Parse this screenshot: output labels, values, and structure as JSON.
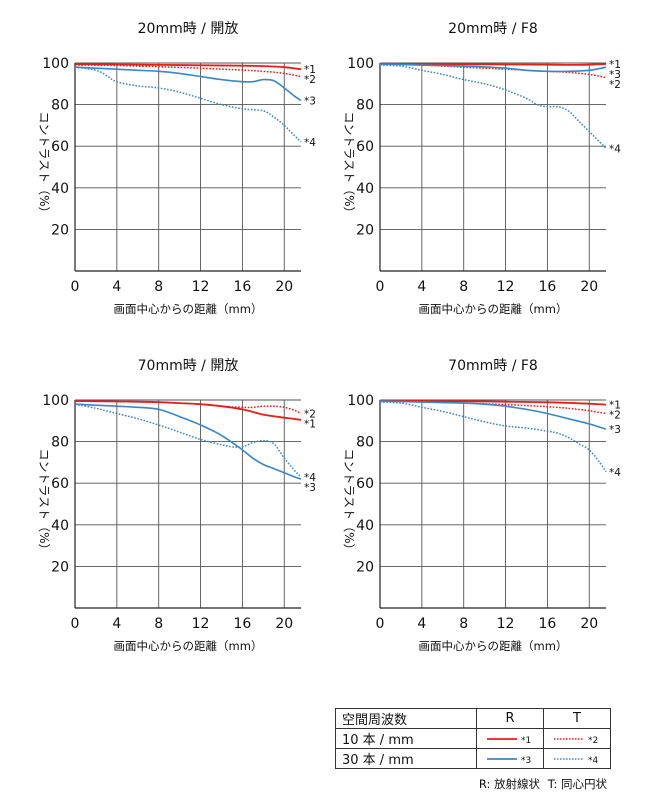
{
  "chart_data": [
    {
      "type": "line",
      "title": "20mm時 / 開放",
      "xlabel": "画面中心からの距離（mm）",
      "ylabel": "コントラスト（%）",
      "xlim": [
        0,
        21.6
      ],
      "ylim": [
        0,
        100
      ],
      "xticks": [
        "0",
        "4",
        "8",
        "12",
        "16",
        "20"
      ],
      "yticks": [
        "20",
        "40",
        "60",
        "80",
        "100"
      ],
      "series": [
        {
          "name": "*1",
          "x": [
            0,
            4,
            8,
            12,
            16,
            18,
            20,
            21.6
          ],
          "values": [
            99.5,
            99.3,
            99.1,
            98.9,
            98.7,
            98.5,
            98,
            97
          ]
        },
        {
          "name": "*2",
          "x": [
            0,
            4,
            8,
            12,
            16,
            18,
            20,
            21.6
          ],
          "values": [
            99,
            98.8,
            98.2,
            97.5,
            96.6,
            96,
            95,
            93.5
          ]
        },
        {
          "name": "*3",
          "x": [
            0,
            2,
            4,
            6,
            8,
            10,
            12,
            14,
            16,
            17,
            18,
            19,
            20,
            21,
            21.6
          ],
          "values": [
            98,
            97.5,
            97,
            96.5,
            96,
            95,
            93.5,
            92,
            91,
            91,
            92,
            91.5,
            88,
            84,
            82
          ]
        },
        {
          "name": "*4",
          "x": [
            0,
            2,
            3,
            4,
            6,
            8,
            10,
            12,
            14,
            16,
            18,
            19,
            20,
            21,
            21.6
          ],
          "values": [
            98,
            96.5,
            94,
            91,
            89,
            88,
            86,
            83,
            80,
            78,
            77,
            74,
            70,
            65,
            62
          ]
        }
      ]
    },
    {
      "type": "line",
      "title": "20mm時 / F8",
      "xlabel": "画面中心からの距離（mm）",
      "ylabel": "コントラスト（%）",
      "xlim": [
        0,
        21.6
      ],
      "ylim": [
        0,
        100
      ],
      "xticks": [
        "0",
        "4",
        "8",
        "12",
        "16",
        "20"
      ],
      "yticks": [
        "20",
        "40",
        "60",
        "80",
        "100"
      ],
      "series": [
        {
          "name": "*1",
          "x": [
            0,
            4,
            8,
            12,
            16,
            18,
            20,
            21.6
          ],
          "values": [
            99.6,
            99.5,
            99.4,
            99.3,
            99.2,
            99.1,
            99.2,
            99.5
          ]
        },
        {
          "name": "*2",
          "x": [
            0,
            4,
            8,
            12,
            16,
            18,
            20,
            21.6
          ],
          "values": [
            99.5,
            99,
            98,
            97,
            96,
            95.5,
            94.5,
            93
          ]
        },
        {
          "name": "*3",
          "x": [
            0,
            4,
            8,
            12,
            14,
            16,
            18,
            20,
            21.6
          ],
          "values": [
            99.5,
            99,
            98.5,
            97.5,
            96.5,
            96,
            96,
            96.5,
            98
          ]
        },
        {
          "name": "*4",
          "x": [
            0,
            2,
            4,
            6,
            8,
            10,
            12,
            14,
            15,
            16,
            17,
            18,
            19,
            20,
            21,
            21.6
          ],
          "values": [
            99,
            98.5,
            96.5,
            94.5,
            92,
            90,
            87,
            83,
            80,
            79,
            79,
            77,
            72,
            67,
            62,
            59
          ]
        }
      ]
    },
    {
      "type": "line",
      "title": "70mm時 / 開放",
      "xlabel": "画面中心からの距離（mm）",
      "ylabel": "コントラスト（%）",
      "xlim": [
        0,
        21.6
      ],
      "ylim": [
        0,
        100
      ],
      "xticks": [
        "0",
        "4",
        "8",
        "12",
        "16",
        "20"
      ],
      "yticks": [
        "20",
        "40",
        "60",
        "80",
        "100"
      ],
      "series": [
        {
          "name": "*1",
          "x": [
            0,
            4,
            8,
            10,
            12,
            14,
            16,
            18,
            20,
            21.6
          ],
          "values": [
            99.5,
            99.3,
            99,
            98.5,
            98,
            97,
            95.5,
            93,
            91.5,
            90.5
          ]
        },
        {
          "name": "*2",
          "x": [
            0,
            4,
            8,
            12,
            14,
            16,
            17,
            18,
            19,
            20,
            21,
            21.6
          ],
          "values": [
            99.5,
            99.3,
            98.8,
            98,
            97,
            96.5,
            96.5,
            97,
            97,
            96.5,
            95,
            93.5
          ]
        },
        {
          "name": "*3",
          "x": [
            0,
            2,
            4,
            6,
            8,
            10,
            12,
            14,
            16,
            17,
            18,
            19,
            20,
            21,
            21.6
          ],
          "values": [
            98,
            97.5,
            97,
            96.5,
            95.5,
            92,
            88,
            83,
            76,
            72,
            69,
            67,
            65,
            63,
            62
          ]
        },
        {
          "name": "*4",
          "x": [
            0,
            2,
            4,
            6,
            8,
            10,
            12,
            14,
            15,
            16,
            17,
            18,
            19,
            20,
            21,
            21.6
          ],
          "values": [
            98,
            96,
            93.5,
            91,
            88,
            84.5,
            81,
            78.5,
            77.5,
            77.5,
            79.5,
            80.5,
            79,
            72,
            66,
            63
          ]
        }
      ]
    },
    {
      "type": "line",
      "title": "70mm時 / F8",
      "xlabel": "画面中心からの距離（mm）",
      "ylabel": "コントラスト（%）",
      "xlim": [
        0,
        21.6
      ],
      "ylim": [
        0,
        100
      ],
      "xticks": [
        "0",
        "4",
        "8",
        "12",
        "16",
        "20"
      ],
      "yticks": [
        "20",
        "40",
        "60",
        "80",
        "100"
      ],
      "series": [
        {
          "name": "*1",
          "x": [
            0,
            4,
            8,
            12,
            16,
            18,
            20,
            21.6
          ],
          "values": [
            99.6,
            99.5,
            99.4,
            99.2,
            98.9,
            98.6,
            98.2,
            97.8
          ]
        },
        {
          "name": "*2",
          "x": [
            0,
            4,
            8,
            12,
            16,
            18,
            20,
            21.6
          ],
          "values": [
            99.5,
            99.2,
            98.6,
            97.8,
            96.8,
            96,
            94.8,
            93.5
          ]
        },
        {
          "name": "*3",
          "x": [
            0,
            4,
            8,
            10,
            12,
            14,
            16,
            18,
            20,
            21.6
          ],
          "values": [
            99.5,
            99,
            98.5,
            98,
            97,
            95.5,
            93.5,
            91,
            88.5,
            86
          ]
        },
        {
          "name": "*4",
          "x": [
            0,
            2,
            4,
            6,
            8,
            10,
            12,
            14,
            16,
            17,
            18,
            19,
            20,
            21,
            21.6
          ],
          "values": [
            99,
            98.5,
            96.5,
            94.5,
            92,
            89.5,
            87.5,
            86.5,
            85,
            84,
            82,
            79,
            76,
            70,
            65.5
          ]
        }
      ]
    }
  ],
  "legend": {
    "header": "空間周波数",
    "col_r": "R",
    "col_t": "T",
    "rows": [
      {
        "label": "10 本 / mm",
        "r": "*1",
        "t": "*2"
      },
      {
        "label": "30 本 / mm",
        "r": "*3",
        "t": "*4"
      }
    ]
  },
  "note": {
    "r": "R: 放射線状",
    "t": "T: 同心円状"
  },
  "colors": {
    "red": "#e32019",
    "blue": "#3a86c8",
    "axis": "#222222",
    "grid": "#555555"
  }
}
